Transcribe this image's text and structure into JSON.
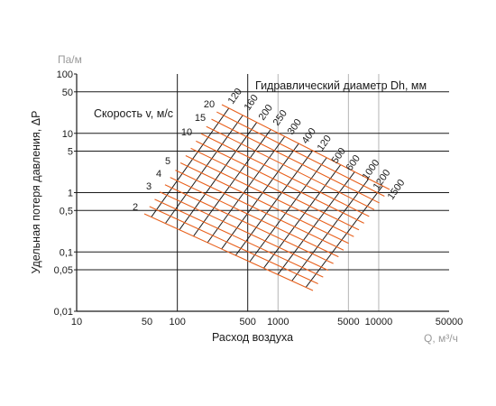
{
  "chart_data": {
    "type": "line",
    "scale": "log-log",
    "title": "",
    "xlabel": "Расход воздуха",
    "xunit": "Q, м³/ч",
    "ylabel": "Удельная потеря давления, ΔP",
    "yunit": "Па/м",
    "xlim": [
      10,
      50000
    ],
    "ylim": [
      0.01,
      100
    ],
    "xticks": [
      10,
      50,
      100,
      500,
      1000,
      5000,
      10000,
      50000
    ],
    "xtick_labels": [
      "10",
      "50",
      "100",
      "500",
      "1000",
      "5000",
      "10000",
      "50000"
    ],
    "yticks": [
      100,
      50,
      10,
      5,
      1,
      0.5,
      0.1,
      0.05,
      0.01
    ],
    "ytick_labels": [
      "100",
      "50",
      "10",
      "5",
      "1",
      "0,5",
      "0,1",
      "0,05",
      "0,01"
    ],
    "gridlines_x": [
      100,
      500,
      1000,
      5000,
      10000
    ],
    "gridlines_y": [
      50,
      10,
      5,
      1,
      0.5,
      0.1,
      0.05
    ],
    "velocity_title": "Скорость v, м/с",
    "diameter_title": "Гидравлический диаметр Dh, мм",
    "velocity_labels": [
      "2",
      "3",
      "4",
      "5",
      "10",
      "15",
      "20"
    ],
    "diameter_labels": [
      "120",
      "160",
      "200",
      "250",
      "300",
      "400",
      "120",
      "500",
      "600",
      "1000",
      "1200",
      "1500"
    ],
    "colors": {
      "velocity_lines": "#e8601c",
      "diameter_lines": "#1a1a1a",
      "axes": "#1a1a1a",
      "grid_light": "#b5b5b5"
    }
  }
}
